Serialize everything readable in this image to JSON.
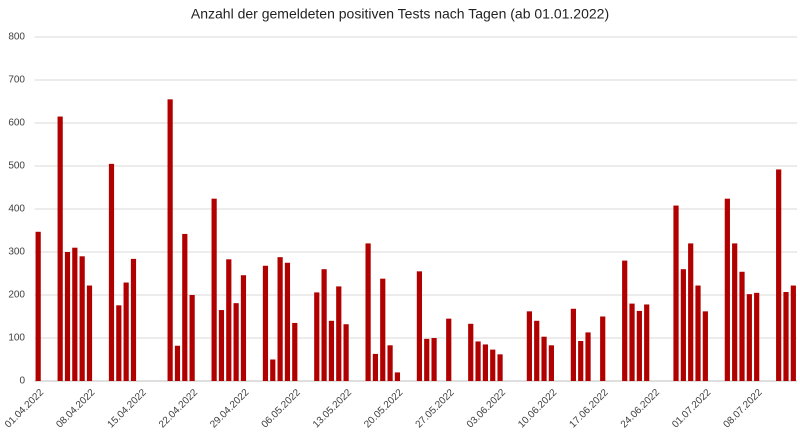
{
  "chart_data": {
    "type": "bar",
    "title": "Anzahl der gemeldeten positiven Tests nach Tagen (ab 01.01.2022)",
    "color": "#b00000",
    "grid": true,
    "ylim": [
      0,
      800
    ],
    "yticks": [
      0,
      100,
      200,
      300,
      400,
      500,
      600,
      700,
      800
    ],
    "categories": [
      "01.04.2022",
      null,
      null,
      null,
      null,
      null,
      null,
      "08.04.2022",
      null,
      null,
      null,
      null,
      null,
      null,
      "15.04.2022",
      null,
      null,
      null,
      null,
      null,
      null,
      "22.04.2022",
      null,
      null,
      null,
      null,
      null,
      null,
      "29.04.2022",
      null,
      null,
      null,
      null,
      null,
      null,
      "06.05.2022",
      null,
      null,
      null,
      null,
      null,
      null,
      "13.05.2022",
      null,
      null,
      null,
      null,
      null,
      null,
      "20.05.2022",
      null,
      null,
      null,
      null,
      null,
      null,
      "27.05.2022",
      null,
      null,
      null,
      null,
      null,
      null,
      "03.06.2022",
      null,
      null,
      null,
      null,
      null,
      null,
      "10.06.2022",
      null,
      null,
      null,
      null,
      null,
      null,
      "17.06.2022",
      null,
      null,
      null,
      null,
      null,
      null,
      "24.06.2022",
      null,
      null,
      null,
      null,
      null,
      null,
      "01.07.2022",
      null,
      null,
      null,
      null,
      null,
      null,
      "08.07.2022",
      null,
      null,
      null,
      null,
      null
    ],
    "values": [
      347,
      null,
      null,
      615,
      300,
      310,
      290,
      222,
      null,
      null,
      505,
      176,
      229,
      284,
      null,
      null,
      null,
      null,
      655,
      82,
      342,
      200,
      null,
      null,
      424,
      165,
      283,
      181,
      246,
      null,
      null,
      268,
      50,
      288,
      275,
      135,
      null,
      null,
      206,
      260,
      140,
      220,
      132,
      null,
      null,
      320,
      63,
      238,
      83,
      20,
      null,
      null,
      255,
      98,
      100,
      null,
      145,
      null,
      null,
      133,
      92,
      85,
      73,
      62,
      null,
      null,
      null,
      162,
      140,
      103,
      83,
      null,
      null,
      168,
      93,
      113,
      null,
      150,
      null,
      null,
      280,
      180,
      163,
      178,
      null,
      null,
      null,
      408,
      260,
      320,
      222,
      162,
      null,
      null,
      424,
      320,
      254,
      202,
      205,
      null,
      null,
      492,
      207,
      222
    ]
  }
}
